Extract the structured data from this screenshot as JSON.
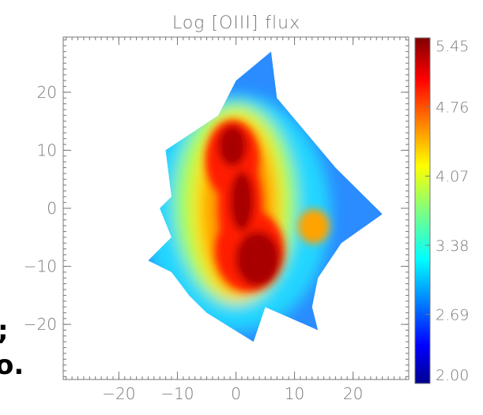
{
  "chart_data": {
    "type": "heatmap",
    "title": "Log [OIII] flux",
    "xlabel": "",
    "ylabel": "",
    "xlim": [
      -29.5,
      29.5
    ],
    "ylim": [
      -29.5,
      29.5
    ],
    "x_ticks": [
      "−20",
      "−10",
      "0",
      "10",
      "20"
    ],
    "y_ticks": [
      "−20",
      "−10",
      "0",
      "10",
      "20"
    ],
    "x_tick_values": [
      -20,
      -10,
      0,
      10,
      20
    ],
    "y_tick_values": [
      -20,
      -10,
      0,
      10,
      20
    ],
    "colorbar": {
      "min": 2.0,
      "max": 5.45,
      "tick_labels": [
        "5.45",
        "4.76",
        "4.07",
        "3.38",
        "2.69",
        "2.00"
      ],
      "tick_values": [
        5.45,
        4.76,
        4.07,
        3.38,
        2.69,
        2.0
      ],
      "colormap": "jet"
    },
    "field_outline_xy": [
      [
        6,
        27
      ],
      [
        7,
        19
      ],
      [
        12,
        13
      ],
      [
        17,
        7
      ],
      [
        25,
        -1
      ],
      [
        18,
        -6
      ],
      [
        14,
        -12
      ],
      [
        13,
        -17
      ],
      [
        14,
        -21
      ],
      [
        5,
        -17
      ],
      [
        3,
        -23
      ],
      [
        -5,
        -18
      ],
      [
        -8,
        -15
      ],
      [
        -11,
        -11
      ],
      [
        -15,
        -9
      ],
      [
        -11,
        -5
      ],
      [
        -13,
        0
      ],
      [
        -11,
        2
      ],
      [
        -12,
        10
      ],
      [
        -6,
        14
      ],
      [
        -3,
        16
      ],
      [
        0,
        22
      ]
    ],
    "peak_regions": [
      {
        "x": -0.5,
        "y": 11,
        "log_flux": 5.4
      },
      {
        "x": 0.5,
        "y": 2,
        "log_flux": 5.3
      },
      {
        "x": 4.5,
        "y": -8,
        "log_flux": 5.45
      },
      {
        "x": 14,
        "y": -2,
        "log_flux": 4.45
      }
    ]
  },
  "edge_text": {
    "line1": ";",
    "line2": "o."
  }
}
